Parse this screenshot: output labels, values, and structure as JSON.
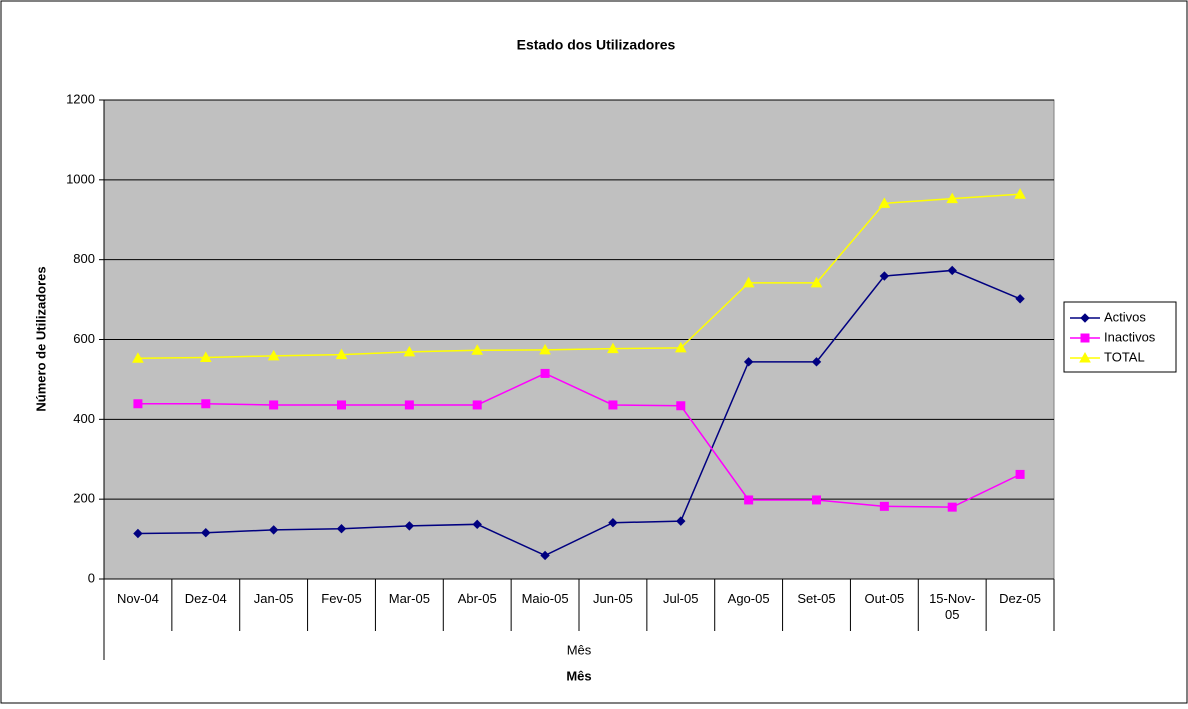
{
  "chart_data": {
    "type": "line",
    "title": "Estado dos Utilizadores",
    "y_label": "Número de Utilizadores",
    "category_group": "Mês",
    "x_label": "Mês",
    "categories": [
      "Nov-04",
      "Dez-04",
      "Jan-05",
      "Fev-05",
      "Mar-05",
      "Abr-05",
      "Maio-05",
      "Jun-05",
      "Jul-05",
      "Ago-05",
      "Set-05",
      "Out-05",
      "15-Nov-05",
      "Dez-05"
    ],
    "series": [
      {
        "name": "Activos",
        "color": "#000080",
        "marker": "diamond",
        "values": [
          114,
          116,
          123,
          126,
          133,
          137,
          59,
          141,
          145,
          544,
          544,
          759,
          773,
          702
        ]
      },
      {
        "name": "Inactivos",
        "color": "#FF00FF",
        "marker": "square",
        "values": [
          439,
          439,
          436,
          436,
          436,
          436,
          515,
          436,
          434,
          198,
          198,
          182,
          180,
          262
        ]
      },
      {
        "name": "TOTAL",
        "color": "#FFFF00",
        "marker": "triangle",
        "values": [
          553,
          555,
          559,
          562,
          569,
          573,
          574,
          577,
          579,
          742,
          742,
          941,
          953,
          964
        ]
      }
    ],
    "ylim": [
      0,
      1200
    ],
    "yticks": [
      0,
      200,
      400,
      600,
      800,
      1000,
      1200
    ],
    "grid": true,
    "legend": "right",
    "plot_background": "#C0C0C0"
  }
}
